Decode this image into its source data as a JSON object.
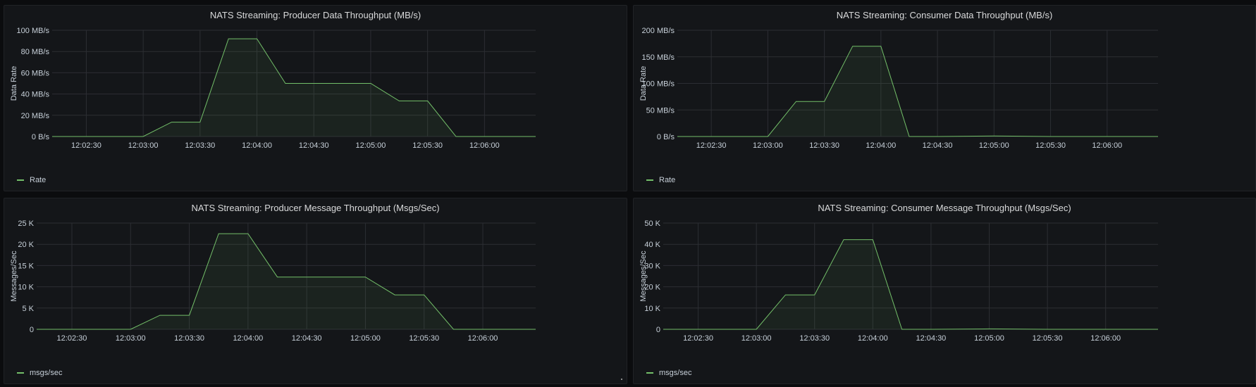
{
  "chart_data": [
    {
      "type": "area",
      "title": "NATS Streaming: Producer Data Throughput (MB/s)",
      "ylabel": "Data Rate",
      "ylim": [
        0,
        100
      ],
      "yticks": [
        0,
        20,
        40,
        60,
        80,
        100
      ],
      "ytick_labels": [
        "0 B/s",
        "20 MB/s",
        "40 MB/s",
        "60 MB/s",
        "80 MB/s",
        "100 MB/s"
      ],
      "xlim": [
        20.0,
        6.5
      ],
      "xticks": [
        2.5,
        3.0,
        3.5,
        4.0,
        4.5,
        5.0,
        5.5,
        6.0
      ],
      "xtick_labels": [
        "12:02:30",
        "12:03:00",
        "12:03:30",
        "12:04:00",
        "12:04:30",
        "12:05:00",
        "12:05:30",
        "12:06:00"
      ],
      "x_range": [
        2.2,
        6.45
      ],
      "series": [
        {
          "name": "Rate",
          "color": "#73bf69",
          "x": [
            2.2,
            2.75,
            3.0,
            3.25,
            3.5,
            3.75,
            4.0,
            4.25,
            4.5,
            4.75,
            5.0,
            5.25,
            5.5,
            5.75,
            6.0,
            6.45
          ],
          "y": [
            0,
            0,
            0,
            13.5,
            13.5,
            92,
            92,
            50,
            50,
            50,
            50,
            33.5,
            33.5,
            0,
            0,
            0
          ]
        }
      ],
      "grid": true,
      "legend": "bottom-left"
    },
    {
      "type": "area",
      "title": "NATS Streaming: Consumer Data Throughput (MB/s)",
      "ylabel": "Data Rate",
      "ylim": [
        0,
        200
      ],
      "yticks": [
        0,
        50,
        100,
        150,
        200
      ],
      "ytick_labels": [
        "0 B/s",
        "50 MB/s",
        "100 MB/s",
        "150 MB/s",
        "200 MB/s"
      ],
      "xticks": [
        2.5,
        3.0,
        3.5,
        4.0,
        4.5,
        5.0,
        5.5,
        6.0
      ],
      "xtick_labels": [
        "12:02:30",
        "12:03:00",
        "12:03:30",
        "12:04:00",
        "12:04:30",
        "12:05:00",
        "12:05:30",
        "12:06:00"
      ],
      "x_range": [
        2.2,
        6.45
      ],
      "series": [
        {
          "name": "Rate",
          "color": "#73bf69",
          "x": [
            2.2,
            2.75,
            3.0,
            3.25,
            3.5,
            3.75,
            4.0,
            4.25,
            4.5,
            5.0,
            5.5,
            6.0,
            6.45
          ],
          "y": [
            0,
            0,
            0,
            66,
            66,
            170,
            170,
            0,
            0,
            1,
            0,
            0,
            0
          ]
        }
      ],
      "grid": true,
      "legend": "bottom-left"
    },
    {
      "type": "area",
      "title": "NATS Streaming: Producer Message Throughput (Msgs/Sec)",
      "ylabel": "Messages/Sec",
      "ylim": [
        0,
        25000
      ],
      "yticks": [
        0,
        5000,
        10000,
        15000,
        20000,
        25000
      ],
      "ytick_labels": [
        "0",
        "5 K",
        "10 K",
        "15 K",
        "20 K",
        "25 K"
      ],
      "xticks": [
        2.5,
        3.0,
        3.5,
        4.0,
        4.5,
        5.0,
        5.5,
        6.0
      ],
      "xtick_labels": [
        "12:02:30",
        "12:03:00",
        "12:03:30",
        "12:04:00",
        "12:04:30",
        "12:05:00",
        "12:05:30",
        "12:06:00"
      ],
      "x_range": [
        2.2,
        6.45
      ],
      "series": [
        {
          "name": "msgs/sec",
          "color": "#73bf69",
          "x": [
            2.2,
            2.75,
            3.0,
            3.25,
            3.5,
            3.75,
            4.0,
            4.25,
            4.5,
            4.75,
            5.0,
            5.25,
            5.5,
            5.75,
            6.0,
            6.45
          ],
          "y": [
            0,
            0,
            0,
            3300,
            3300,
            22500,
            22500,
            12300,
            12300,
            12300,
            12300,
            8100,
            8100,
            0,
            0,
            0
          ]
        }
      ],
      "grid": true,
      "legend": "bottom-left"
    },
    {
      "type": "area",
      "title": "NATS Streaming: Consumer Message Throughput (Msgs/Sec)",
      "ylabel": "Messages/Sec",
      "ylim": [
        0,
        50000
      ],
      "yticks": [
        0,
        10000,
        20000,
        30000,
        40000,
        50000
      ],
      "ytick_labels": [
        "0",
        "10 K",
        "20 K",
        "30 K",
        "40 K",
        "50 K"
      ],
      "xticks": [
        2.5,
        3.0,
        3.5,
        4.0,
        4.5,
        5.0,
        5.5,
        6.0
      ],
      "xtick_labels": [
        "12:02:30",
        "12:03:00",
        "12:03:30",
        "12:04:00",
        "12:04:30",
        "12:05:00",
        "12:05:30",
        "12:06:00"
      ],
      "x_range": [
        2.2,
        6.45
      ],
      "series": [
        {
          "name": "msgs/sec",
          "color": "#73bf69",
          "x": [
            2.2,
            2.75,
            3.0,
            3.25,
            3.5,
            3.75,
            4.0,
            4.25,
            4.5,
            5.0,
            5.5,
            6.0,
            6.45
          ],
          "y": [
            0,
            0,
            0,
            16200,
            16200,
            42200,
            42200,
            0,
            0,
            200,
            0,
            0,
            0
          ]
        }
      ],
      "grid": true,
      "legend": "bottom-left"
    }
  ],
  "colors": {
    "background": "#0b0c0e",
    "panel": "#141619",
    "grid": "#2c2e33",
    "series": "#73bf69",
    "text": "#c7d0d9"
  }
}
